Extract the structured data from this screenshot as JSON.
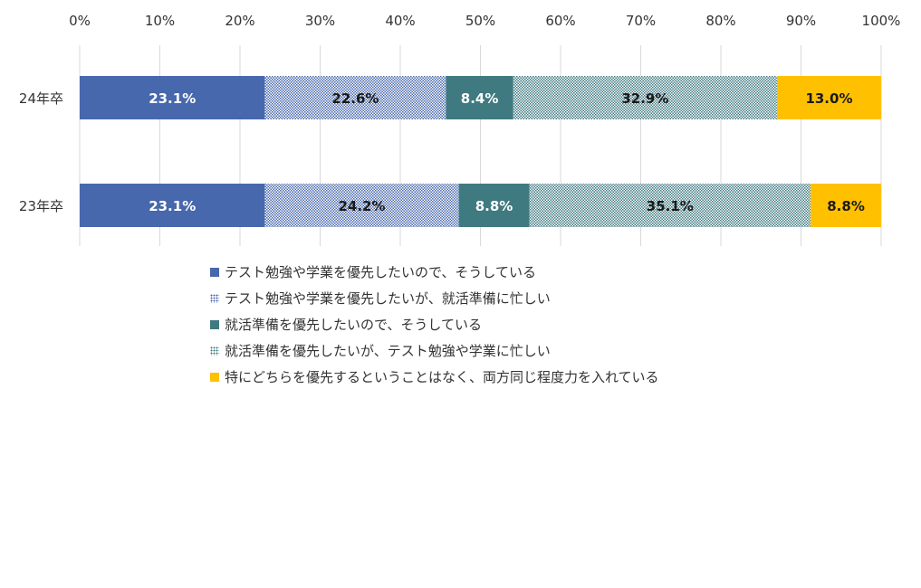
{
  "chart_data": {
    "type": "bar",
    "orientation": "horizontal",
    "stacked": true,
    "title": "",
    "xlabel": "",
    "ylabel": "",
    "xlim": [
      0,
      100
    ],
    "x_ticks": [
      "0%",
      "10%",
      "20%",
      "30%",
      "40%",
      "50%",
      "60%",
      "70%",
      "80%",
      "90%",
      "100%"
    ],
    "grid": true,
    "legend_position": "bottom-left",
    "categories": [
      "24年卒",
      "23年卒"
    ],
    "series": [
      {
        "name": "テスト勉強や学業を優先したいので、そうしている",
        "values": [
          23.1,
          23.1
        ],
        "labels": [
          "23.1%",
          "23.1%"
        ],
        "color": "#4868AD",
        "pattern": "solid",
        "label_color": "#ffffff"
      },
      {
        "name": "テスト勉強や学業を優先したいが、就活準備に忙しい",
        "values": [
          22.6,
          24.2
        ],
        "labels": [
          "22.6%",
          "24.2%"
        ],
        "color": "#4868AD",
        "pattern": "dots",
        "label_color": "#1a1a1a"
      },
      {
        "name": "就活準備を優先したいので、そうしている",
        "values": [
          8.4,
          8.8
        ],
        "labels": [
          "8.4%",
          "8.8%"
        ],
        "color": "#3F7A80",
        "pattern": "solid",
        "label_color": "#ffffff"
      },
      {
        "name": "就活準備を優先したいが、テスト勉強や学業に忙しい",
        "values": [
          32.9,
          35.1
        ],
        "labels": [
          "32.9%",
          "35.1%"
        ],
        "color": "#3F7A80",
        "pattern": "dots",
        "label_color": "#1a1a1a"
      },
      {
        "name": "特にどちらを優先するということはなく、両方同じ程度力を入れている",
        "values": [
          13.0,
          8.8
        ],
        "labels": [
          "13.0%",
          "8.8%"
        ],
        "color": "#FFC000",
        "pattern": "solid",
        "label_color": "#1a1a1a"
      }
    ]
  }
}
